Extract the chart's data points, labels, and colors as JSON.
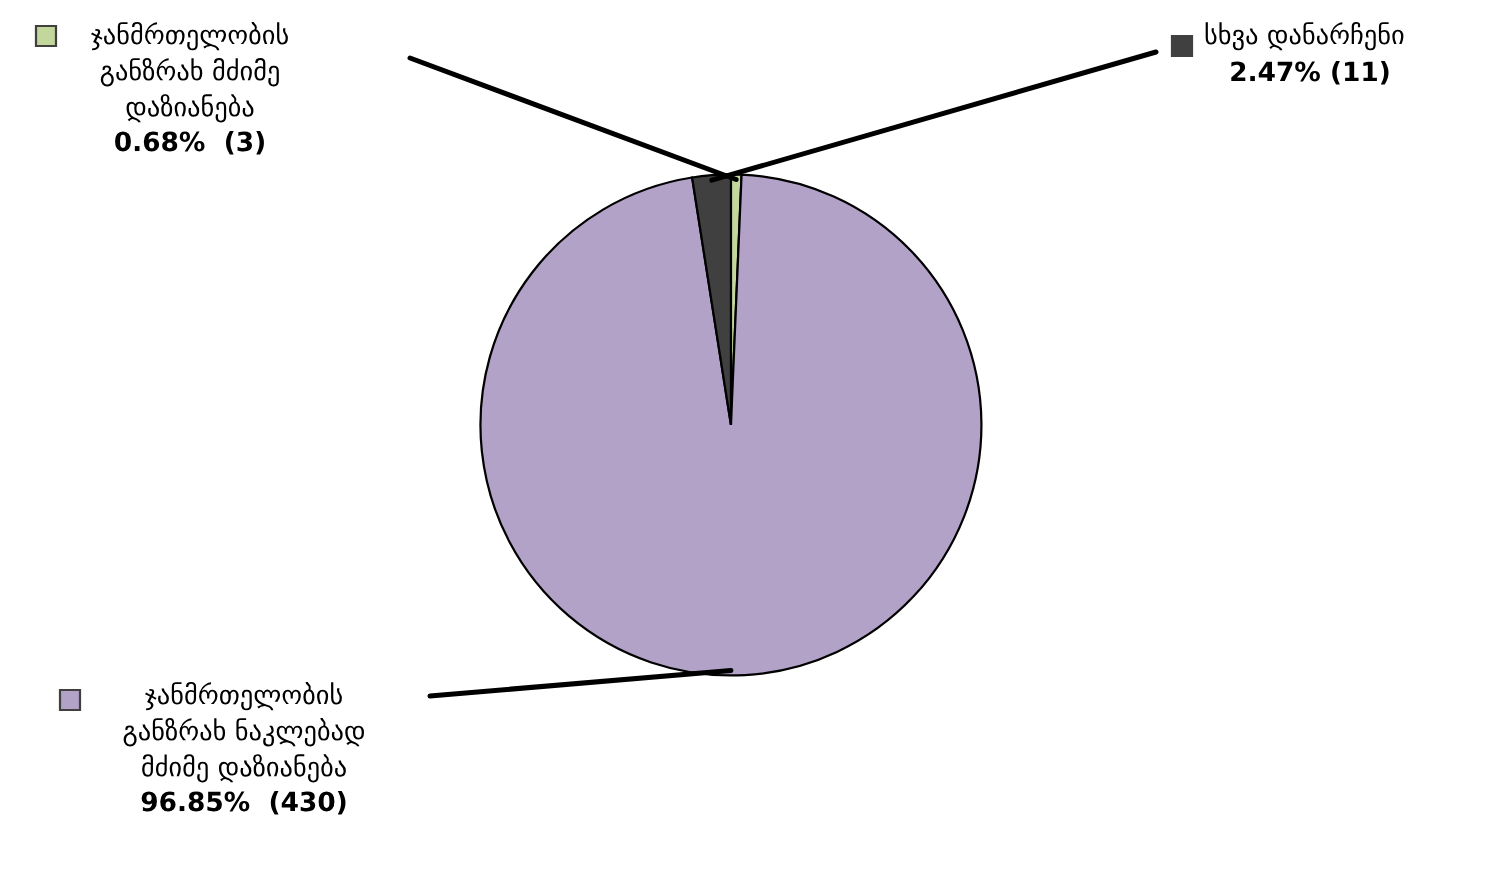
{
  "chart_data": {
    "type": "pie",
    "categories": [
      "ჯანმრთელობის განზრახ მძიმე დაზიანება",
      "ჯანმრთელობის განზრახ ნაკლებად მძიმე დაზიანება",
      "სხვა დანარჩენი"
    ],
    "values": [
      3,
      430,
      11
    ],
    "value_labels": [
      "0.68%  (3)",
      "96.85%  (430)",
      "2.47% (11)"
    ],
    "colors": [
      "#c3d69b",
      "#b3a2c7",
      "#404040"
    ],
    "legend": "left"
  }
}
